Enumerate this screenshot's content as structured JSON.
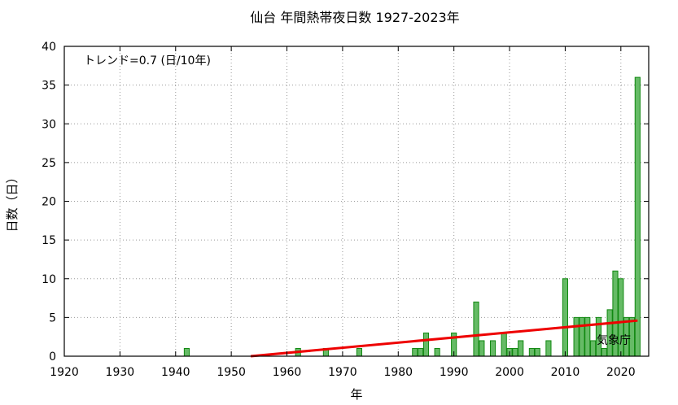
{
  "chart_data": {
    "type": "bar",
    "title": "仙台 年間熱帯夜日数 1927-2023年",
    "xlabel": "年",
    "ylabel": "日数（日）",
    "xlim": [
      1920,
      2025
    ],
    "ylim": [
      0,
      40
    ],
    "x_ticks": [
      "1920",
      "1930",
      "1940",
      "1950",
      "1960",
      "1970",
      "1980",
      "1990",
      "2000",
      "2010",
      "2020"
    ],
    "y_ticks": [
      "0",
      "5",
      "10",
      "15",
      "20",
      "25",
      "30",
      "35",
      "40"
    ],
    "grid": true,
    "bar_color": "#66bb66",
    "bar_edge_color": "#118811",
    "trend_color": "#ee0000",
    "series": [
      {
        "x": [
          1942,
          1962,
          1967,
          1973,
          1983,
          1984,
          1985,
          1987,
          1990,
          1994,
          1995,
          1997,
          1999,
          2000,
          2001,
          2002,
          2004,
          2005,
          2007,
          2010,
          2012,
          2013,
          2014,
          2015,
          2016,
          2017,
          2018,
          2019,
          2020,
          2021,
          2022,
          2023
        ],
        "values": [
          1,
          1,
          1,
          1,
          1,
          1,
          3,
          1,
          3,
          7,
          2,
          2,
          3,
          1,
          1,
          2,
          1,
          1,
          2,
          10,
          5,
          5,
          5,
          2,
          5,
          1,
          6,
          11,
          10,
          5,
          5,
          36
        ]
      }
    ],
    "trend": {
      "label": "トレンド=0.7 (日/10年)",
      "x": [
        1953.5,
        2023
      ],
      "y": [
        0,
        4.6
      ]
    },
    "annotations": [
      "気象庁"
    ]
  }
}
